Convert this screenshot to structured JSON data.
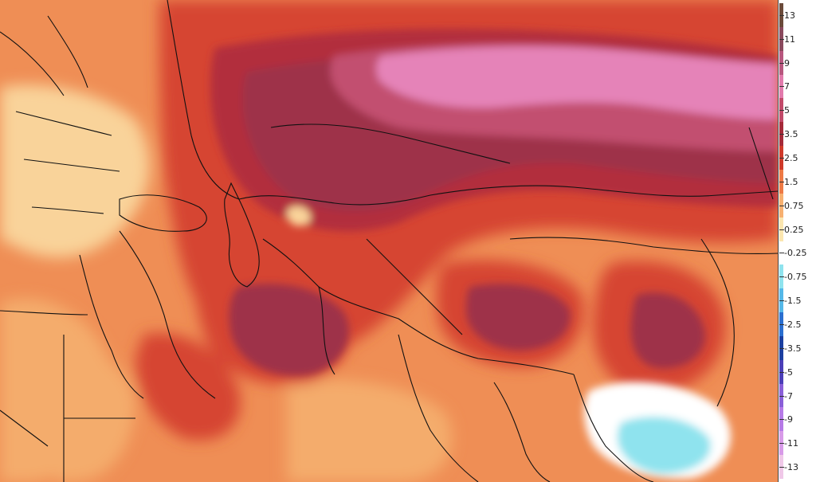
{
  "legend": {
    "ticks": [
      {
        "label": "13",
        "color": "#6b4a3a"
      },
      {
        "label": "11",
        "color": "#8a4a5e"
      },
      {
        "label": "9",
        "color": "#b8577f"
      },
      {
        "label": "7",
        "color": "#e27aac"
      },
      {
        "label": "5",
        "color": "#c24a6a"
      },
      {
        "label": "3.5",
        "color": "#a52a3a"
      },
      {
        "label": "2.5",
        "color": "#cf3a2a"
      },
      {
        "label": "1.5",
        "color": "#ee7a45"
      },
      {
        "label": "0.75",
        "color": "#f7b070"
      },
      {
        "label": "0.25",
        "color": "#fbe6b0"
      },
      {
        "label": "-0.25",
        "color": "#ffffff"
      },
      {
        "label": "-0.75",
        "color": "#8fe3ee"
      },
      {
        "label": "-1.5",
        "color": "#55b8e8"
      },
      {
        "label": "-2.5",
        "color": "#2b6fd0"
      },
      {
        "label": "-3.5",
        "color": "#1c3fa0"
      },
      {
        "label": "-5",
        "color": "#4c3fb8"
      },
      {
        "label": "-7",
        "color": "#8a5fd8"
      },
      {
        "label": "-9",
        "color": "#b67ae6"
      },
      {
        "label": "-11",
        "color": "#d89be8"
      },
      {
        "label": "-13",
        "color": "#f0c8e8"
      }
    ]
  },
  "colors": {
    "background": "#ef8e55",
    "pale": "#f9d39a",
    "light_orange": "#f4ac6c",
    "red": "#d64430",
    "dark_red": "#b22e3c",
    "maroon": "#9e3048",
    "rose": "#c25070",
    "pink": "#e583b8",
    "white": "#ffffff",
    "cyan": "#8fe3ee",
    "coast": "#111111"
  }
}
